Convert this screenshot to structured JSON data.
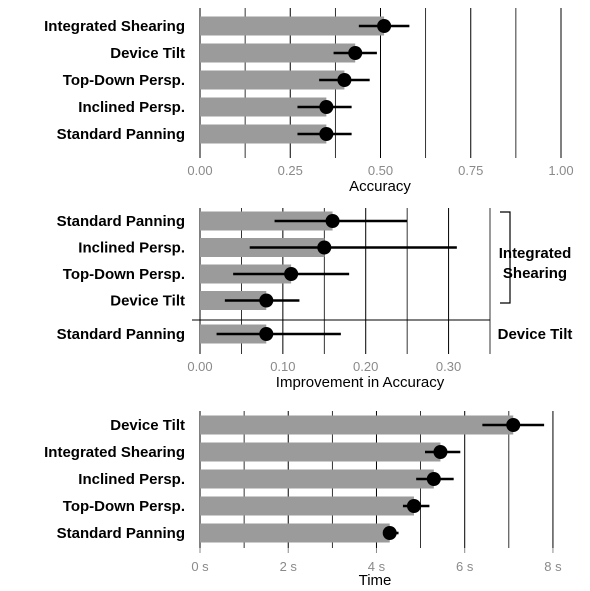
{
  "chart_data": [
    {
      "type": "bar",
      "xlabel": "Accuracy",
      "xlim": [
        0,
        1
      ],
      "xticks": [
        "0.00",
        "0.25",
        "0.50",
        "0.75",
        "1.00"
      ],
      "categories": [
        "Integrated Shearing",
        "Device Tilt",
        "Top-Down Persp.",
        "Inclined Persp.",
        "Standard Panning"
      ],
      "values": [
        0.51,
        0.43,
        0.4,
        0.35,
        0.35
      ],
      "ci_low": [
        0.44,
        0.37,
        0.33,
        0.27,
        0.27
      ],
      "ci_high": [
        0.58,
        0.49,
        0.47,
        0.42,
        0.42
      ],
      "grid": "vertical"
    },
    {
      "type": "bar",
      "xlabel": "Improvement in Accuracy",
      "xlim": [
        0,
        0.35
      ],
      "xticks": [
        "0.00",
        "0.10",
        "0.20",
        "0.30"
      ],
      "groups": [
        {
          "label": "Integrated Shearing",
          "categories": [
            "Standard Panning",
            "Inclined Persp.",
            "Top-Down Persp.",
            "Device Tilt"
          ],
          "values": [
            0.16,
            0.15,
            0.11,
            0.08
          ],
          "ci_low": [
            0.09,
            0.06,
            0.04,
            0.03
          ],
          "ci_high": [
            0.25,
            0.31,
            0.18,
            0.12
          ]
        },
        {
          "label": "Device Tilt",
          "categories": [
            "Standard Panning"
          ],
          "values": [
            0.08
          ],
          "ci_low": [
            0.02
          ],
          "ci_high": [
            0.17
          ]
        }
      ],
      "grid": "vertical"
    },
    {
      "type": "bar",
      "xlabel": "Time",
      "xlim": [
        0,
        8.5
      ],
      "xticks": [
        "0 s",
        "2 s",
        "4 s",
        "6 s",
        "8 s"
      ],
      "categories": [
        "Device Tilt",
        "Integrated Shearing",
        "Inclined Persp.",
        "Top-Down Persp.",
        "Standard Panning"
      ],
      "values": [
        7.1,
        5.45,
        5.3,
        4.85,
        4.3
      ],
      "ci_low": [
        6.4,
        5.1,
        4.9,
        4.6,
        4.15
      ],
      "ci_high": [
        7.8,
        5.9,
        5.75,
        5.2,
        4.5
      ],
      "grid": "vertical"
    }
  ],
  "colors": {
    "bar": "#9b9b9b",
    "point": "#000000",
    "grid": "#000000",
    "tick_text": "#8a8a8a"
  }
}
